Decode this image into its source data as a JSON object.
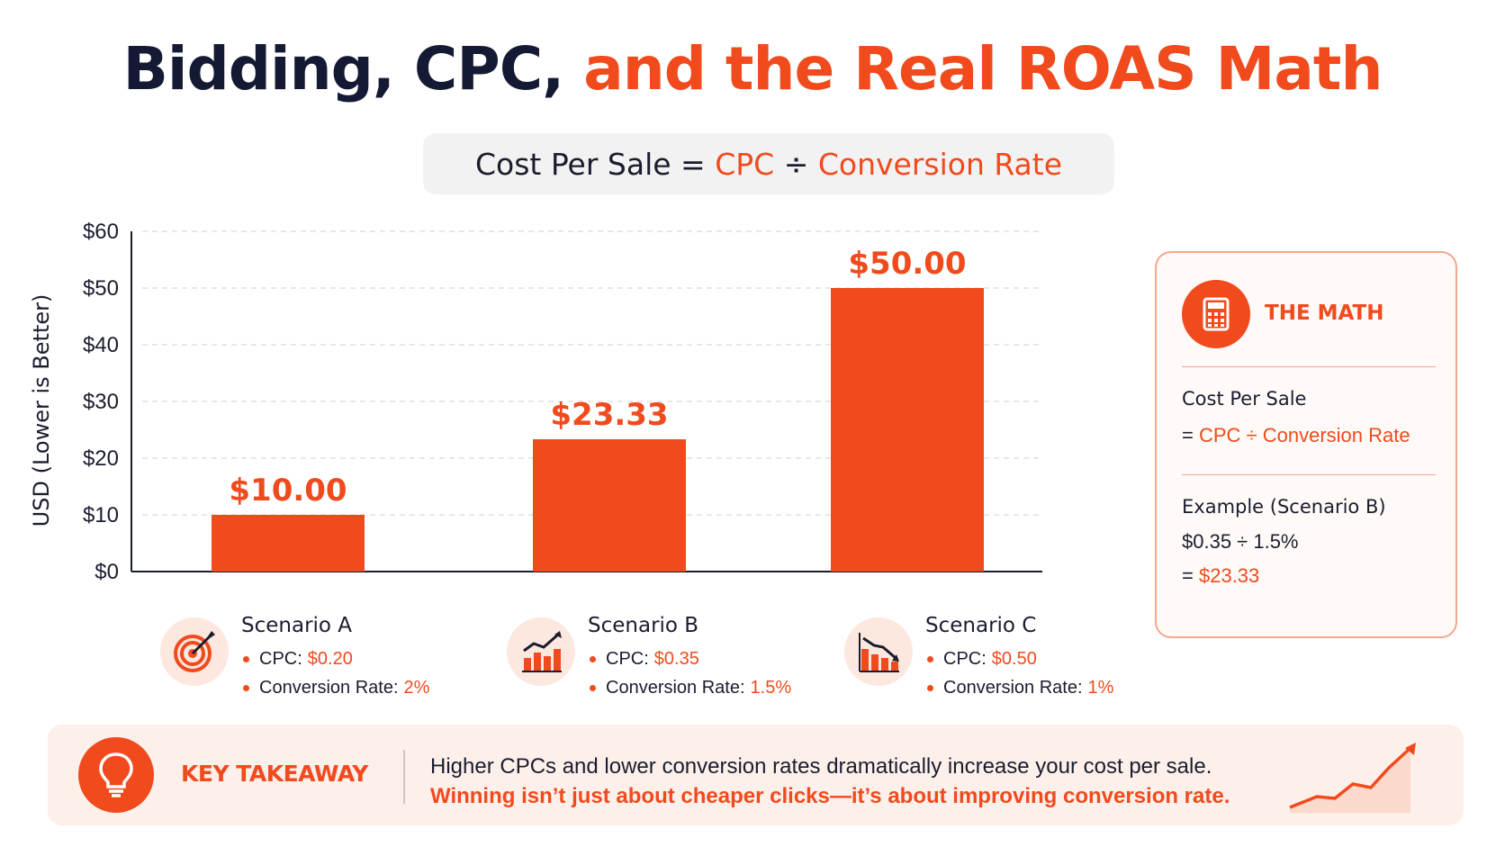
{
  "title": {
    "main": "Bidding, CPC,",
    "accent": "and the Real ROAS Math"
  },
  "formula": {
    "lhs": "Cost Per Sale =",
    "cpc": "CPC",
    "op": "÷",
    "rate": "Conversion Rate"
  },
  "chart_data": {
    "type": "bar",
    "categories": [
      "Scenario A",
      "Scenario B",
      "Scenario C"
    ],
    "values": [
      10.0,
      23.33,
      50.0
    ],
    "value_labels": [
      "$10.00",
      "$23.33",
      "$50.00"
    ],
    "ylabel": "USD (Lower is Better)",
    "ylim": [
      0,
      60
    ],
    "yticks": [
      0,
      10,
      20,
      30,
      40,
      50,
      60
    ],
    "ytick_labels": [
      "$0",
      "$10",
      "$20",
      "$30",
      "$40",
      "$50",
      "$60"
    ],
    "grid": true,
    "bar_color": "#f04a1d"
  },
  "scenarios": [
    {
      "name": "Scenario A",
      "icon": "target-icon",
      "cpc_label": "CPC:",
      "cpc": "$0.20",
      "rate_label": "Conversion Rate:",
      "rate": "2%"
    },
    {
      "name": "Scenario B",
      "icon": "bar-chart-up-icon",
      "cpc_label": "CPC:",
      "cpc": "$0.35",
      "rate_label": "Conversion Rate:",
      "rate": "1.5%"
    },
    {
      "name": "Scenario C",
      "icon": "bar-chart-down-icon",
      "cpc_label": "CPC:",
      "cpc": "$0.50",
      "rate_label": "Conversion Rate:",
      "rate": "1%"
    }
  ],
  "math": {
    "title": "THE MATH",
    "icon": "calculator-icon",
    "formula_head": "Cost Per Sale",
    "formula_eq": "=",
    "formula_body": "CPC ÷ Conversion Rate",
    "example_head": "Example (Scenario B)",
    "example_calc": "$0.35 ÷ 1.5%",
    "example_eq": "=",
    "example_result": "$23.33"
  },
  "takeaway": {
    "label": "KEY TAKEAWAY",
    "icon": "lightbulb-icon",
    "line1": "Higher CPCs and lower conversion rates dramatically increase your cost per sale.",
    "line2": "Winning isn’t just about cheaper clicks—it’s about improving conversion rate.",
    "trend_icon": "trend-up-icon"
  },
  "colors": {
    "accent": "#f04a1d",
    "dark": "#141a33",
    "light_accent": "#fde8e0"
  }
}
